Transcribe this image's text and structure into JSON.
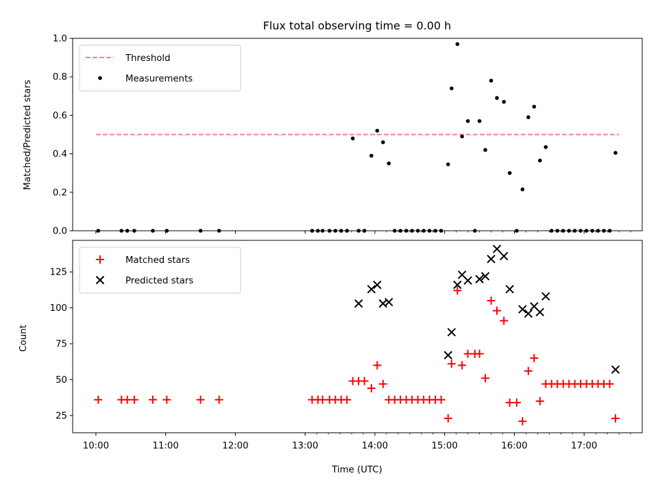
{
  "chart_data": [
    {
      "type": "scatter",
      "title": "Flux total observing time = 0.00 h",
      "xlabel": "",
      "ylabel": "Matched/Predicted stars",
      "ylim": [
        0,
        1.0
      ],
      "xlim": [
        "09:40",
        "17:50"
      ],
      "grid": false,
      "legend_position": "top-left",
      "yticks": [
        "0.0",
        "0.2",
        "0.4",
        "0.6",
        "0.8",
        "1.0"
      ],
      "series": [
        {
          "name": "Threshold",
          "kind": "dashed-line",
          "color": "#ff7f7f",
          "x": [
            "10:00",
            "17:30"
          ],
          "y": [
            0.5,
            0.5
          ]
        },
        {
          "name": "Measurements",
          "kind": "dots",
          "color": "#000000",
          "x": [
            "10:02",
            "10:22",
            "10:27",
            "10:33",
            "10:49",
            "11:01",
            "11:30",
            "11:46",
            "13:06",
            "13:11",
            "13:15",
            "13:21",
            "13:26",
            "13:31",
            "13:36",
            "13:41",
            "13:46",
            "13:51",
            "13:57",
            "14:02",
            "14:07",
            "14:12",
            "14:17",
            "14:22",
            "14:27",
            "14:32",
            "14:37",
            "14:42",
            "14:47",
            "14:52",
            "14:57",
            "15:03",
            "15:06",
            "15:11",
            "15:15",
            "15:20",
            "15:26",
            "15:30",
            "15:35",
            "15:40",
            "15:45",
            "15:51",
            "15:56",
            "16:02",
            "16:07",
            "16:12",
            "16:17",
            "16:22",
            "16:27",
            "16:32",
            "16:37",
            "16:42",
            "16:47",
            "16:52",
            "16:57",
            "17:02",
            "17:07",
            "17:12",
            "17:17",
            "17:22",
            "17:27"
          ],
          "y": [
            0,
            0,
            0,
            0,
            0,
            0,
            0,
            0,
            0,
            0,
            0,
            0,
            0,
            0,
            0,
            0.48,
            0,
            0,
            0.39,
            0.52,
            0.46,
            0.35,
            0,
            0,
            0,
            0,
            0,
            0,
            0,
            0,
            0,
            0.345,
            0.74,
            0.97,
            0.49,
            0.57,
            0,
            0.57,
            0.42,
            0.78,
            0.69,
            0.67,
            0.3,
            0,
            0.215,
            0.59,
            0.645,
            0.365,
            0.435,
            0,
            0,
            0,
            0,
            0,
            0,
            0,
            0,
            0,
            0,
            0,
            0.405
          ]
        }
      ]
    },
    {
      "type": "scatter",
      "title": "",
      "xlabel": "Time (UTC)",
      "ylabel": "Count",
      "ylim": [
        13,
        147
      ],
      "xlim": [
        "09:40",
        "17:50"
      ],
      "grid": false,
      "legend_position": "top-left",
      "xticks": [
        "10:00",
        "11:00",
        "12:00",
        "13:00",
        "14:00",
        "15:00",
        "16:00",
        "17:00"
      ],
      "yticks": [
        "25",
        "50",
        "75",
        "100",
        "125"
      ],
      "series": [
        {
          "name": "Matched stars",
          "marker": "+",
          "color": "#ff0000",
          "x": [
            "10:02",
            "10:22",
            "10:27",
            "10:33",
            "10:49",
            "11:01",
            "11:30",
            "11:46",
            "13:06",
            "13:11",
            "13:15",
            "13:21",
            "13:26",
            "13:31",
            "13:36",
            "13:41",
            "13:46",
            "13:51",
            "13:57",
            "14:02",
            "14:07",
            "14:12",
            "14:17",
            "14:22",
            "14:27",
            "14:32",
            "14:37",
            "14:42",
            "14:47",
            "14:52",
            "14:57",
            "15:03",
            "15:06",
            "15:11",
            "15:15",
            "15:20",
            "15:26",
            "15:30",
            "15:35",
            "15:40",
            "15:45",
            "15:51",
            "15:56",
            "16:02",
            "16:07",
            "16:12",
            "16:17",
            "16:22",
            "16:27",
            "16:32",
            "16:37",
            "16:42",
            "16:47",
            "16:52",
            "16:57",
            "17:02",
            "17:07",
            "17:12",
            "17:17",
            "17:22",
            "17:27"
          ],
          "y": [
            36,
            36,
            36,
            36,
            36,
            36,
            36,
            36,
            36,
            36,
            36,
            36,
            36,
            36,
            36,
            49,
            49,
            49,
            44,
            60,
            47,
            36,
            36,
            36,
            36,
            36,
            36,
            36,
            36,
            36,
            36,
            23,
            61,
            112,
            60,
            68,
            68,
            68,
            51,
            105,
            98,
            91,
            34,
            34,
            21,
            56,
            65,
            35,
            47,
            47,
            47,
            47,
            47,
            47,
            47,
            47,
            47,
            47,
            47,
            47,
            23
          ]
        },
        {
          "name": "Predicted stars",
          "marker": "x",
          "color": "#000000",
          "x": [
            "13:46",
            "13:57",
            "14:02",
            "14:07",
            "14:12",
            "15:03",
            "15:06",
            "15:11",
            "15:15",
            "15:20",
            "15:30",
            "15:35",
            "15:40",
            "15:45",
            "15:51",
            "15:56",
            "16:07",
            "16:12",
            "16:17",
            "16:22",
            "16:27",
            "17:27"
          ],
          "y": [
            103,
            113,
            116,
            103,
            104,
            67,
            83,
            116,
            123,
            119,
            120,
            122,
            134,
            141,
            136,
            113,
            99,
            96,
            101,
            97,
            108,
            57
          ]
        }
      ]
    }
  ]
}
